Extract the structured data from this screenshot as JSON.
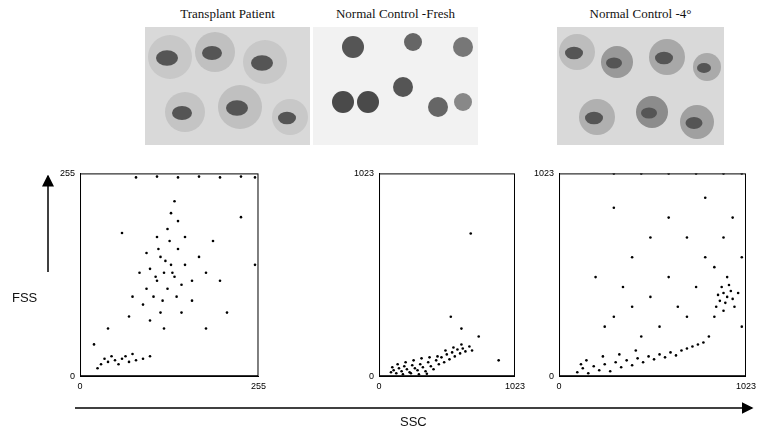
{
  "figure": {
    "x_label": "SSC",
    "y_label": "FSS"
  },
  "chart_data": [
    {
      "type": "scatter",
      "title": "Transplant Patient",
      "xlim": [
        0,
        255
      ],
      "ylim": [
        0,
        255
      ],
      "xticks": [
        0,
        255
      ],
      "yticks": [
        0,
        255
      ],
      "grid": false,
      "color": "#000000",
      "marker": "dot",
      "x": [
        120,
        110,
        130,
        125,
        115,
        135,
        105,
        140,
        100,
        145,
        118,
        128,
        95,
        150,
        112,
        138,
        122,
        108,
        132,
        90,
        160,
        125,
        115,
        150,
        85,
        140,
        100,
        170,
        130,
        75,
        160,
        120,
        180,
        110,
        95,
        145,
        135,
        190,
        70,
        200,
        30,
        40,
        50,
        60,
        70,
        80,
        45,
        55,
        65,
        90,
        35,
        100,
        25,
        75,
        80,
        110,
        140,
        170,
        200,
        230,
        250,
        20,
        40,
        210,
        230,
        60,
        250,
        180
      ],
      "values": [
        130,
        120,
        140,
        110,
        150,
        125,
        100,
        160,
        135,
        115,
        95,
        170,
        110,
        140,
        160,
        100,
        145,
        125,
        130,
        90,
        120,
        185,
        80,
        175,
        130,
        195,
        70,
        150,
        205,
        100,
        95,
        60,
        130,
        175,
        155,
        80,
        220,
        170,
        75,
        120,
        15,
        18,
        20,
        22,
        18,
        20,
        25,
        15,
        25,
        22,
        22,
        25,
        10,
        28,
        250,
        251,
        250,
        251,
        250,
        251,
        250,
        40,
        60,
        80,
        200,
        180,
        140,
        60
      ]
    },
    {
      "type": "scatter",
      "title": "Normal Control -Fresh",
      "xlim": [
        0,
        1023
      ],
      "ylim": [
        0,
        1023
      ],
      "xticks": [
        0,
        1023
      ],
      "yticks": [
        0,
        1023
      ],
      "grid": false,
      "color": "#000000",
      "marker": "dot",
      "x": [
        90,
        110,
        130,
        150,
        170,
        190,
        210,
        230,
        250,
        270,
        290,
        310,
        330,
        350,
        370,
        390,
        410,
        430,
        450,
        470,
        490,
        510,
        530,
        550,
        570,
        590,
        610,
        630,
        650,
        680,
        700,
        140,
        200,
        260,
        320,
        380,
        440,
        500,
        560,
        620,
        100,
        180,
        240,
        300,
        360,
        540,
        690,
        750,
        900,
        620
      ],
      "values": [
        20,
        30,
        15,
        40,
        25,
        50,
        35,
        20,
        55,
        40,
        30,
        60,
        45,
        25,
        70,
        50,
        35,
        80,
        60,
        95,
        70,
        110,
        85,
        120,
        100,
        135,
        115,
        140,
        125,
        150,
        130,
        60,
        70,
        80,
        90,
        95,
        100,
        130,
        145,
        160,
        45,
        10,
        15,
        10,
        12,
        300,
        720,
        200,
        80,
        240
      ]
    },
    {
      "type": "scatter",
      "title": "Normal Control -4°",
      "xlim": [
        0,
        1023
      ],
      "ylim": [
        0,
        1023
      ],
      "xticks": [
        0,
        1023
      ],
      "yticks": [
        0,
        1023
      ],
      "grid": false,
      "color": "#000000",
      "marker": "dot",
      "x": [
        100,
        130,
        160,
        190,
        220,
        250,
        280,
        310,
        340,
        370,
        400,
        430,
        460,
        490,
        520,
        550,
        580,
        610,
        640,
        670,
        700,
        730,
        760,
        790,
        820,
        150,
        240,
        330,
        420,
        120,
        880,
        900,
        920,
        860,
        940,
        890,
        910,
        950,
        870,
        930,
        850,
        960,
        900,
        980,
        920,
        300,
        500,
        400,
        600,
        700,
        800,
        550,
        650,
        750,
        450,
        350,
        250,
        200,
        600,
        800,
        900,
        1000,
        700,
        950,
        500,
        300,
        850,
        1000,
        400,
        300,
        450,
        600,
        750,
        900,
        1000
      ],
      "values": [
        20,
        40,
        15,
        50,
        30,
        60,
        25,
        70,
        45,
        80,
        55,
        90,
        70,
        100,
        85,
        110,
        95,
        120,
        105,
        130,
        140,
        150,
        160,
        170,
        200,
        80,
        100,
        110,
        130,
        60,
        380,
        420,
        400,
        350,
        430,
        450,
        370,
        390,
        410,
        460,
        300,
        350,
        330,
        420,
        500,
        300,
        400,
        600,
        500,
        700,
        600,
        250,
        350,
        450,
        200,
        450,
        250,
        500,
        800,
        900,
        700,
        600,
        300,
        800,
        700,
        850,
        550,
        250,
        350,
        1023,
        1023,
        1023,
        1023,
        1023,
        1023
      ]
    }
  ]
}
